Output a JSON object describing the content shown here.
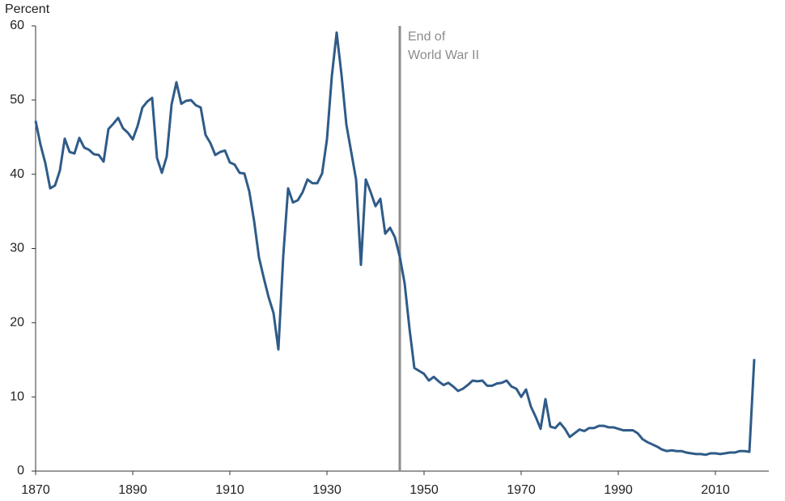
{
  "chart_data": {
    "type": "line",
    "y_label": "Percent",
    "x": [
      1870,
      1871,
      1872,
      1873,
      1874,
      1875,
      1876,
      1877,
      1878,
      1879,
      1880,
      1881,
      1882,
      1883,
      1884,
      1885,
      1886,
      1887,
      1888,
      1889,
      1890,
      1891,
      1892,
      1893,
      1894,
      1895,
      1896,
      1897,
      1898,
      1899,
      1900,
      1901,
      1902,
      1903,
      1904,
      1905,
      1906,
      1907,
      1908,
      1909,
      1910,
      1911,
      1912,
      1913,
      1914,
      1915,
      1916,
      1917,
      1918,
      1919,
      1920,
      1921,
      1922,
      1923,
      1924,
      1925,
      1926,
      1927,
      1928,
      1929,
      1930,
      1931,
      1932,
      1933,
      1934,
      1935,
      1936,
      1937,
      1938,
      1939,
      1940,
      1941,
      1942,
      1943,
      1944,
      1945,
      1946,
      1947,
      1948,
      1949,
      1950,
      1951,
      1952,
      1953,
      1954,
      1955,
      1956,
      1957,
      1958,
      1959,
      1960,
      1961,
      1962,
      1963,
      1964,
      1965,
      1966,
      1967,
      1968,
      1969,
      1970,
      1971,
      1972,
      1973,
      1974,
      1975,
      1976,
      1977,
      1978,
      1979,
      1980,
      1981,
      1982,
      1983,
      1984,
      1985,
      1986,
      1987,
      1988,
      1989,
      1990,
      1991,
      1992,
      1993,
      1994,
      1995,
      1996,
      1997,
      1998,
      1999,
      2000,
      2001,
      2002,
      2003,
      2004,
      2005,
      2006,
      2007,
      2008,
      2009,
      2010,
      2011,
      2012,
      2013,
      2014,
      2015,
      2016,
      2017,
      2018
    ],
    "values": [
      47.2,
      44,
      41.5,
      38.1,
      38.5,
      40.5,
      44.8,
      43,
      42.8,
      44.9,
      43.6,
      43.3,
      42.7,
      42.6,
      41.7,
      46.1,
      46.8,
      47.6,
      46.2,
      45.6,
      44.7,
      46.5,
      49,
      49.8,
      50.3,
      42.2,
      40.2,
      42.4,
      49.4,
      52.4,
      49.5,
      49.9,
      50,
      49.3,
      49,
      45.3,
      44.2,
      42.6,
      43,
      43.2,
      41.6,
      41.3,
      40.2,
      40.1,
      37.7,
      33.7,
      28.8,
      26,
      23.4,
      21.3,
      16.4,
      29,
      38.1,
      36.2,
      36.5,
      37.6,
      39.3,
      38.8,
      38.8,
      40.1,
      44.7,
      53.2,
      59.1,
      53.4,
      46.7,
      43,
      39.3,
      27.8,
      39.3,
      37.6,
      35.7,
      36.7,
      32,
      32.8,
      31.5,
      28.9,
      25.3,
      19.2,
      13.9,
      13.5,
      13.1,
      12.2,
      12.7,
      12.1,
      11.6,
      11.9,
      11.4,
      10.8,
      11.1,
      11.6,
      12.2,
      12.1,
      12.2,
      11.5,
      11.5,
      11.8,
      11.9,
      12.2,
      11.4,
      11.1,
      10,
      11,
      8.7,
      7.3,
      5.7,
      9.7,
      6,
      5.8,
      6.5,
      5.7,
      4.6,
      5.1,
      5.6,
      5.4,
      5.8,
      5.8,
      6.1,
      6.1,
      5.9,
      5.9,
      5.7,
      5.5,
      5.5,
      5.5,
      5.1,
      4.3,
      3.9,
      3.6,
      3.3,
      2.9,
      2.7,
      2.8,
      2.7,
      2.7,
      2.5,
      2.4,
      2.3,
      2.3,
      2.2,
      2.4,
      2.4,
      2.3,
      2.4,
      2.5,
      2.5,
      2.7,
      2.7,
      2.6,
      15.1
    ],
    "color": "#2f5b88",
    "xlim": [
      1870,
      2021
    ],
    "xticks": [
      1870,
      1890,
      1910,
      1930,
      1950,
      1970,
      1990,
      2010
    ],
    "ylim": [
      0,
      60
    ],
    "yticks": [
      0,
      10,
      20,
      30,
      40,
      50,
      60
    ],
    "annotation": {
      "x": 1945,
      "lines": [
        "End of",
        "World War II"
      ],
      "color": "#8c8c8c"
    }
  }
}
